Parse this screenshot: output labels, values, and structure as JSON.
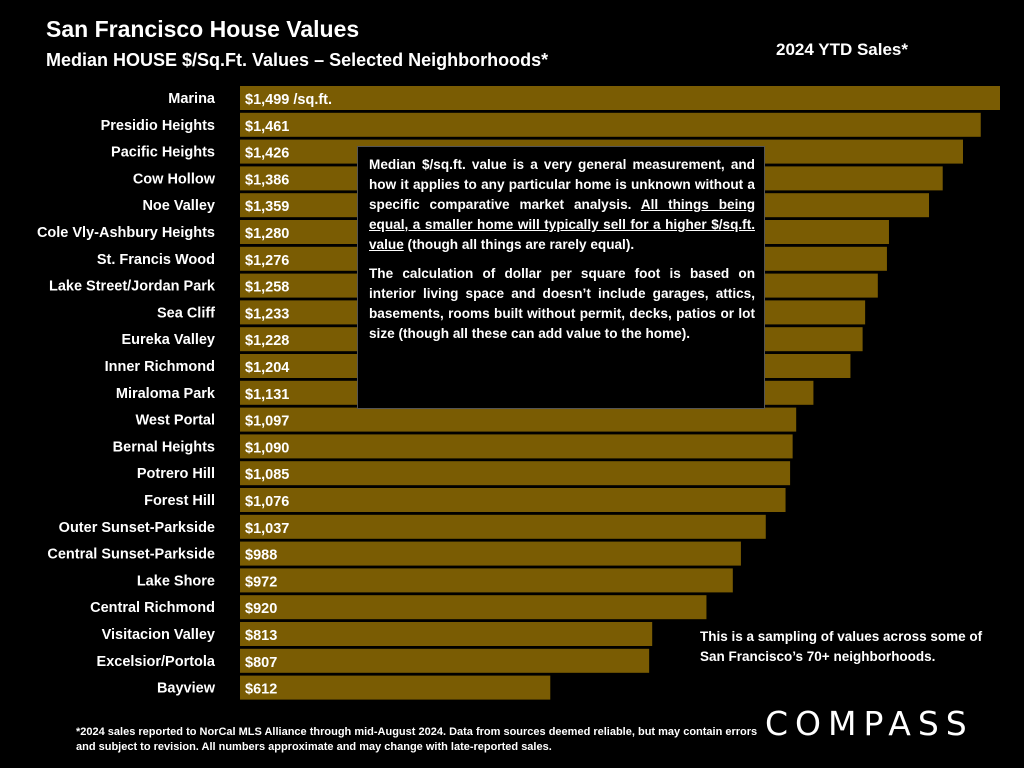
{
  "header": {
    "title": "San Francisco House Values",
    "subtitle": "Median HOUSE $/Sq.Ft. Values – Selected Neighborhoods*",
    "period": "2024 YTD Sales*"
  },
  "note": {
    "p1_before": "Median $/sq.ft. value is a very general measurement, and how it applies to any particular home is unknown without a specific comparative market analysis. ",
    "p1_underlined": "All things being equal, a smaller home will typically sell for a higher $/sq.ft. value",
    "p1_after": " (though all things are rarely equal).",
    "p2": "The calculation of dollar per square foot is based on interior living space and doesn’t include garages, attics, basements, rooms built without permit, decks, patios or lot size (though all these can add value to the home)."
  },
  "sampling_note": "This is a sampling of values across some of San Francisco’s 70+ neighborhoods.",
  "footnote": "*2024 sales reported to NorCal MLS Alliance through mid-August 2024. Data from sources deemed reliable, but may contain errors and subject to revision. All numbers approximate and may change with late-reported sales.",
  "logo": "COMPASS",
  "colors": {
    "bar": "#7a5c03",
    "bar_border": "#000000",
    "background": "#000000",
    "text": "#ffffff"
  },
  "chart_data": {
    "type": "bar",
    "orientation": "horizontal",
    "title": "San Francisco House Values",
    "subtitle": "Median HOUSE $/Sq.Ft. Values – Selected Neighborhoods*",
    "categories": [
      "Marina",
      "Presidio Heights",
      "Pacific Heights",
      "Cow Hollow",
      "Noe Valley",
      "Cole Vly-Ashbury Heights",
      "St. Francis Wood",
      "Lake Street/Jordan Park",
      "Sea Cliff",
      "Eureka Valley",
      "Inner Richmond",
      "Miraloma Park",
      "West Portal",
      "Bernal Heights",
      "Potrero Hill",
      "Forest Hill",
      "Outer Sunset-Parkside",
      "Central Sunset-Parkside",
      "Lake Shore",
      "Central Richmond",
      "Visitacion Valley",
      "Excelsior/Portola",
      "Bayview"
    ],
    "values": [
      1499,
      1461,
      1426,
      1386,
      1359,
      1280,
      1276,
      1258,
      1233,
      1228,
      1204,
      1131,
      1097,
      1090,
      1085,
      1076,
      1037,
      988,
      972,
      920,
      813,
      807,
      612
    ],
    "data_labels": [
      "$1,499",
      "$1,461",
      "$1,426",
      "$1,386",
      "$1,359",
      "$1,280",
      "$1,276",
      "$1,258",
      "$1,233",
      "$1,228",
      "$1,204",
      "$1,131",
      "$1,097",
      "$1,090",
      "$1,085",
      "$1,076",
      "$1,037",
      "$988",
      "$972",
      "$920",
      "$813",
      "$807",
      "$612"
    ],
    "first_label_unit": "/sq.ft.",
    "xlim": [
      0,
      1499
    ],
    "grid": false,
    "legend": "none"
  }
}
